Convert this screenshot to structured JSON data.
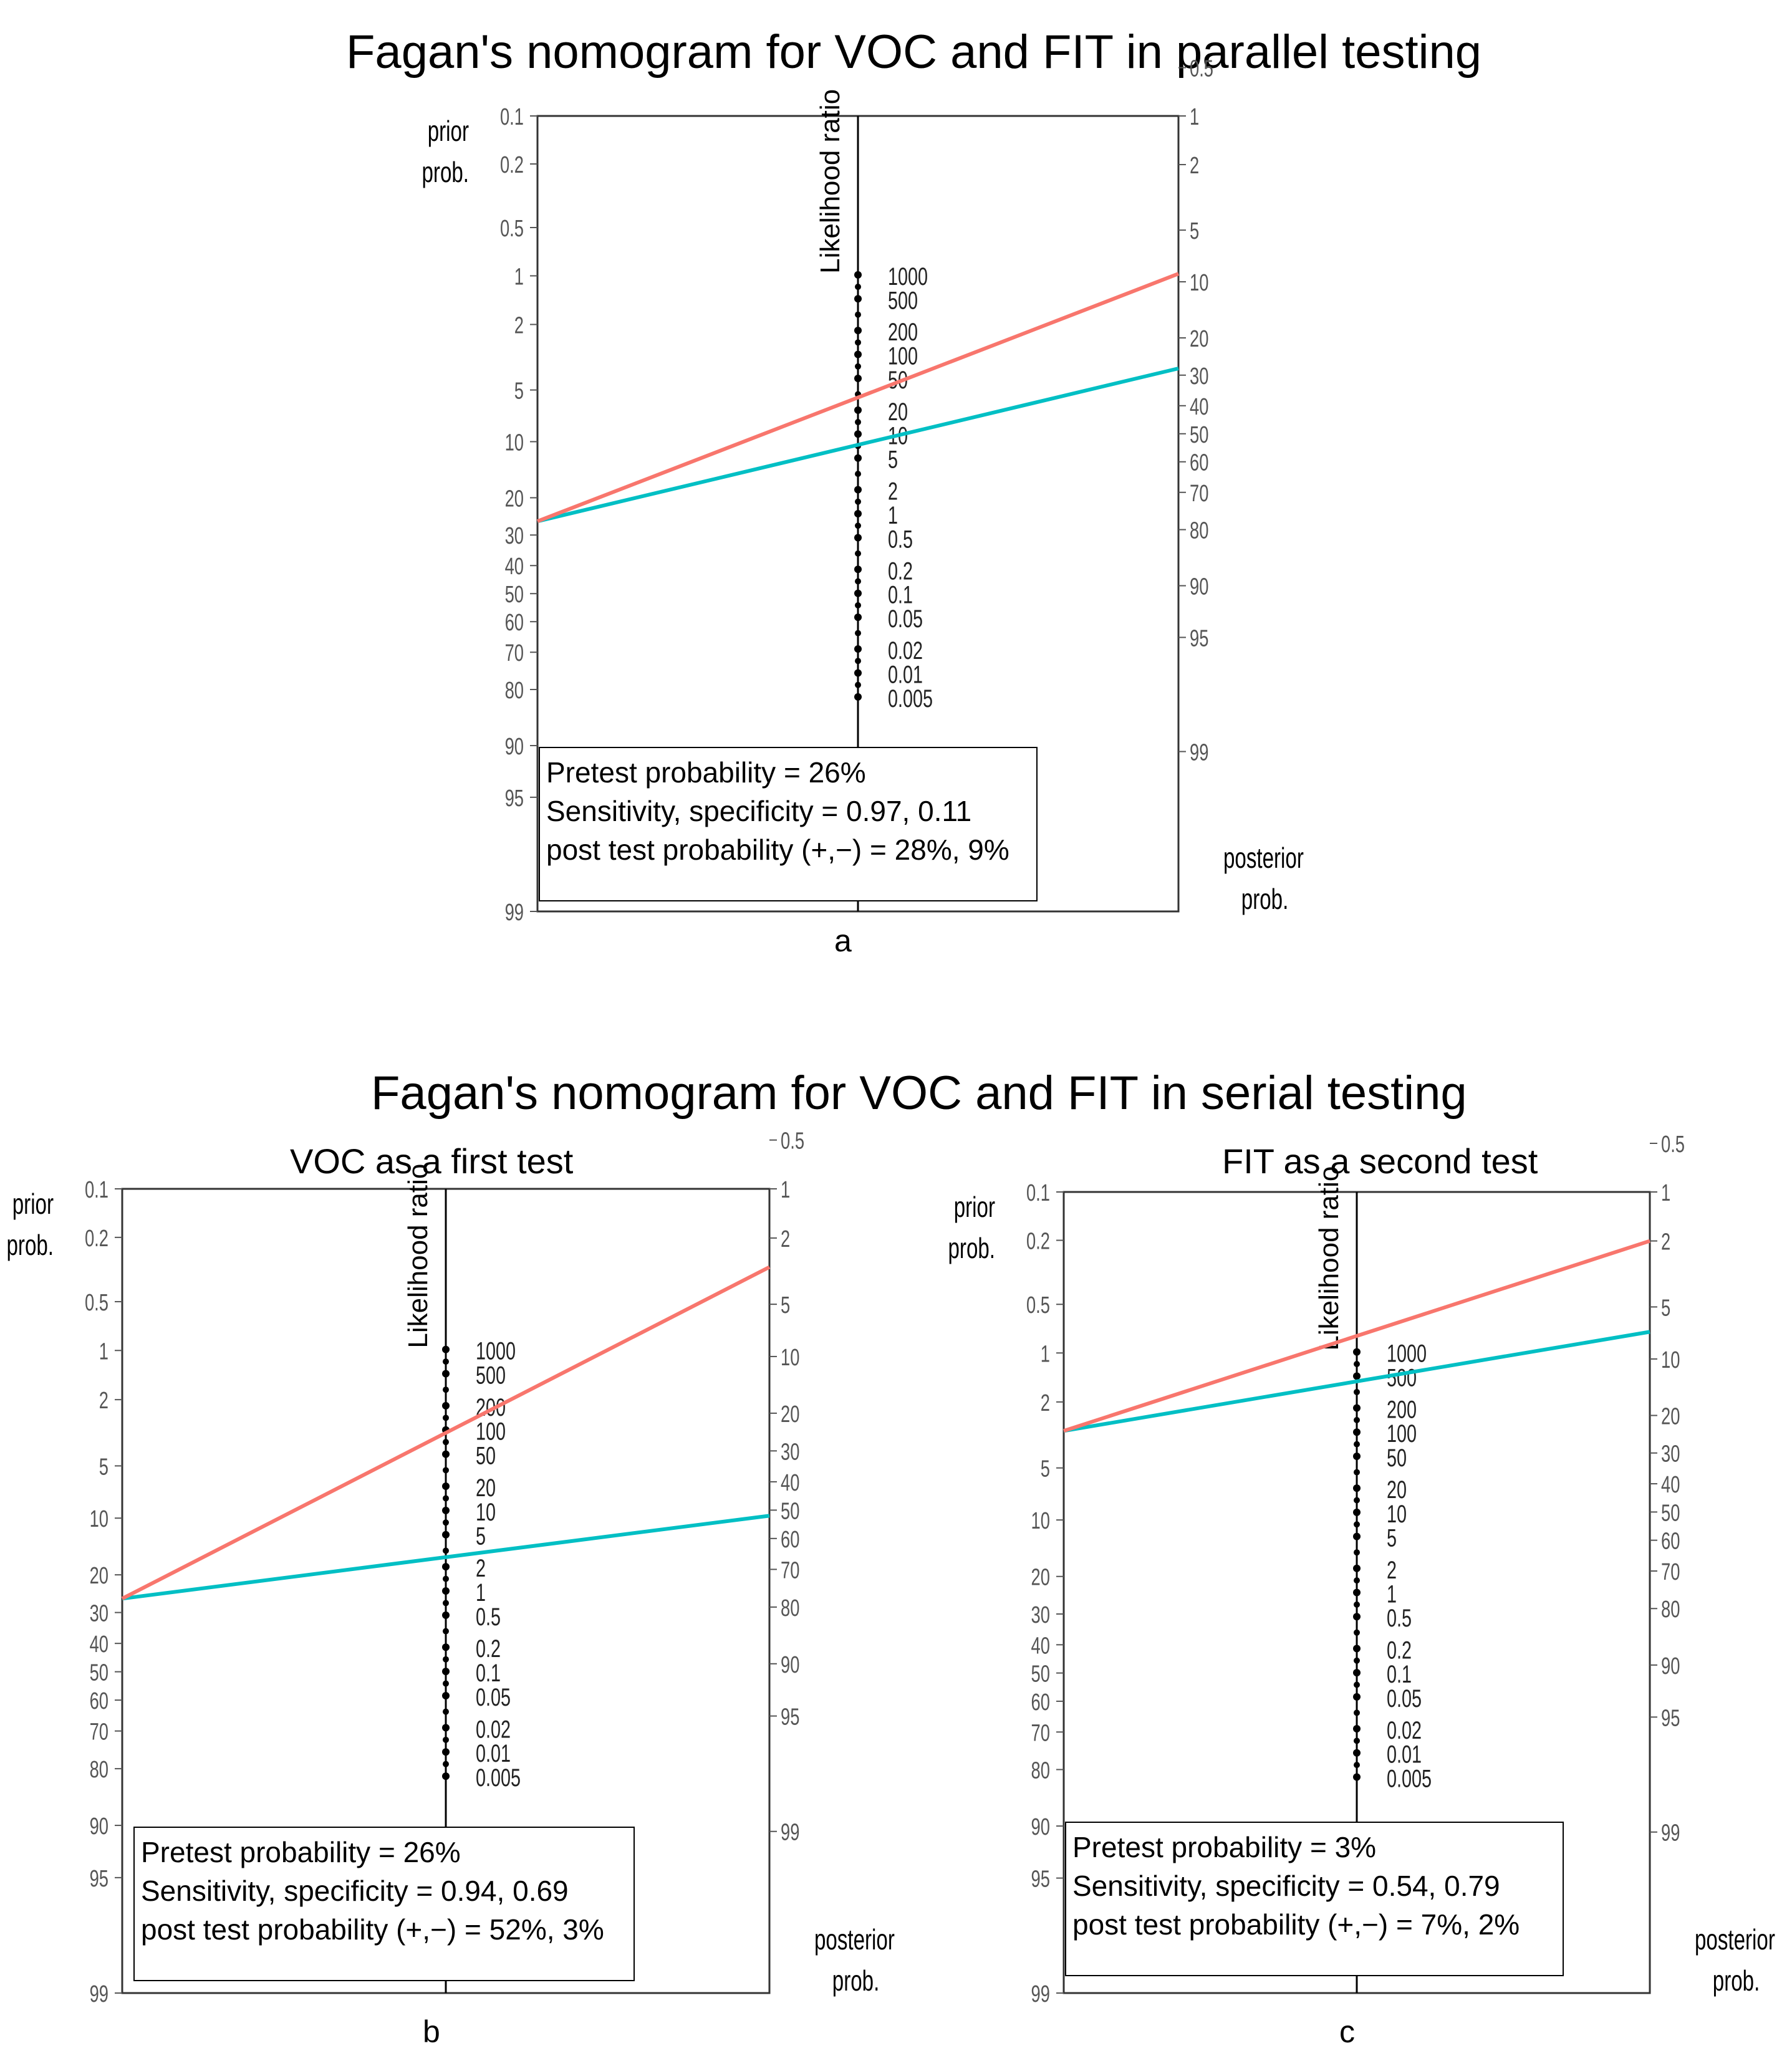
{
  "chart_data": [
    {
      "type": "line",
      "panel_label": "a",
      "title": "Fagan's nomogram for VOC and FIT in parallel testing",
      "subtitle": "",
      "left_axis_label": [
        "prior",
        "prob."
      ],
      "right_axis_label": [
        "posterior",
        "prob."
      ],
      "center_axis_label": "Likelihood ratio",
      "prior_ticks": [
        "0.1",
        "0.2",
        "0.5",
        "1",
        "2",
        "5",
        "10",
        "20",
        "30",
        "40",
        "50",
        "60",
        "70",
        "80",
        "90",
        "95",
        "99"
      ],
      "posterior_ticks": [
        "99",
        "95",
        "90",
        "80",
        "70",
        "60",
        "50",
        "40",
        "30",
        "20",
        "10",
        "5",
        "2",
        "1",
        "0.5"
      ],
      "lr_ticks": [
        "1000",
        "500",
        "200",
        "100",
        "50",
        "20",
        "10",
        "5",
        "2",
        "1",
        "0.5",
        "0.2",
        "0.1",
        "0.05",
        "0.02",
        "0.01",
        "0.005"
      ],
      "series": [
        {
          "name": "positive",
          "color": "#00BFC4",
          "pretest": 26,
          "posttest": 28
        },
        {
          "name": "negative",
          "color": "#F8766D",
          "pretest": 26,
          "posttest": 9
        }
      ],
      "legend_lines": [
        "Pretest probability = 26%",
        "Sensitivity, specificity = 0.97, 0.11",
        "post test probability (+,−) = 28%, 9%"
      ]
    },
    {
      "type": "line",
      "panel_label": "b",
      "title": "Fagan's nomogram for VOC and FIT in serial testing",
      "subtitle": "VOC as a first test",
      "left_axis_label": [
        "prior",
        "prob."
      ],
      "right_axis_label": [
        "posterior",
        "prob."
      ],
      "center_axis_label": "Likelihood ratio",
      "prior_ticks": [
        "0.1",
        "0.2",
        "0.5",
        "1",
        "2",
        "5",
        "10",
        "20",
        "30",
        "40",
        "50",
        "60",
        "70",
        "80",
        "90",
        "95",
        "99"
      ],
      "posterior_ticks": [
        "99",
        "95",
        "90",
        "80",
        "70",
        "60",
        "50",
        "40",
        "30",
        "20",
        "10",
        "5",
        "2",
        "1",
        "0.5"
      ],
      "lr_ticks": [
        "1000",
        "500",
        "200",
        "100",
        "50",
        "20",
        "10",
        "5",
        "2",
        "1",
        "0.5",
        "0.2",
        "0.1",
        "0.05",
        "0.02",
        "0.01",
        "0.005"
      ],
      "series": [
        {
          "name": "positive",
          "color": "#00BFC4",
          "pretest": 26,
          "posttest": 52
        },
        {
          "name": "negative",
          "color": "#F8766D",
          "pretest": 26,
          "posttest": 3
        }
      ],
      "legend_lines": [
        "Pretest probability = 26%",
        "Sensitivity, specificity = 0.94, 0.69",
        "post test probability (+,−) = 52%, 3%"
      ]
    },
    {
      "type": "line",
      "panel_label": "c",
      "title": "",
      "subtitle": "FIT as a second test",
      "left_axis_label": [
        "prior",
        "prob."
      ],
      "right_axis_label": [
        "posterior",
        "prob."
      ],
      "center_axis_label": "Likelihood ratio",
      "prior_ticks": [
        "0.1",
        "0.2",
        "0.5",
        "1",
        "2",
        "5",
        "10",
        "20",
        "30",
        "40",
        "50",
        "60",
        "70",
        "80",
        "90",
        "95",
        "99"
      ],
      "posterior_ticks": [
        "99",
        "95",
        "90",
        "80",
        "70",
        "60",
        "50",
        "40",
        "30",
        "20",
        "10",
        "5",
        "2",
        "1",
        "0.5"
      ],
      "lr_ticks": [
        "1000",
        "500",
        "200",
        "100",
        "50",
        "20",
        "10",
        "5",
        "2",
        "1",
        "0.5",
        "0.2",
        "0.1",
        "0.05",
        "0.02",
        "0.01",
        "0.005"
      ],
      "series": [
        {
          "name": "positive",
          "color": "#00BFC4",
          "pretest": 3,
          "posttest": 7
        },
        {
          "name": "negative",
          "color": "#F8766D",
          "pretest": 3,
          "posttest": 2
        }
      ],
      "legend_lines": [
        "Pretest probability = 3%",
        "Sensitivity, specificity = 0.54, 0.79",
        "post test probability (+,−) = 7%, 2%"
      ]
    }
  ]
}
